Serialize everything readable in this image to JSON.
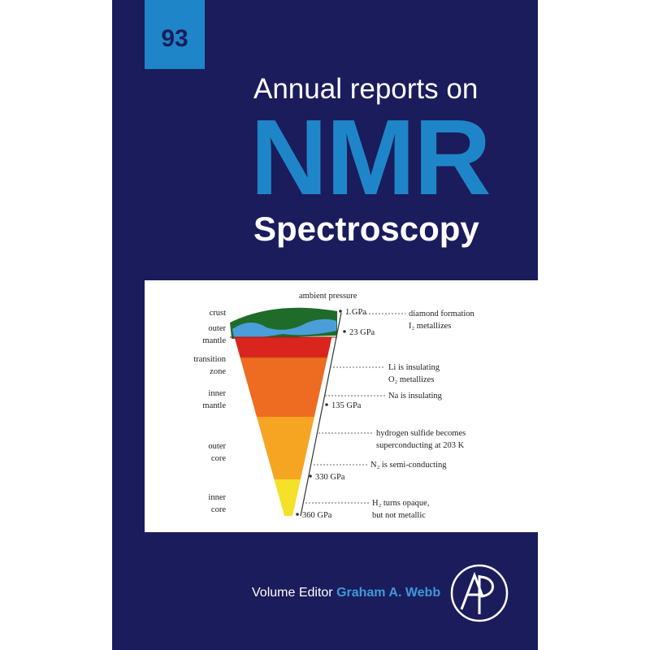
{
  "cover": {
    "volume": "93",
    "series_line": "Annual reports on",
    "title": "NMR",
    "subtitle": "Spectroscopy"
  },
  "figure": {
    "top_label": "ambient pressure",
    "layers": [
      [
        "crust"
      ],
      [
        "outer",
        "mantle"
      ],
      [
        "transition",
        "zone"
      ],
      [
        "inner",
        "mantle"
      ],
      [
        "outer",
        "core"
      ],
      [
        "inner",
        "core"
      ]
    ],
    "pressures": [
      "1 GPa",
      "23 GPa",
      "135 GPa",
      "330 GPa",
      "360 GPa"
    ],
    "notes": [
      [
        "diamond formation",
        "I₂ metallizes"
      ],
      [
        "Li is insulating",
        "O₂ metallizes"
      ],
      [
        "Na is insulating"
      ],
      [
        "hydrogen sulfide becomes",
        "superconducting at 203 K"
      ],
      [
        "N₂ is semi-conducting"
      ],
      [
        "H₂ turns opaque,",
        "but not metallic"
      ]
    ]
  },
  "footer": {
    "editor_label": "Volume Editor",
    "editor_name": "Graham A. Webb"
  }
}
